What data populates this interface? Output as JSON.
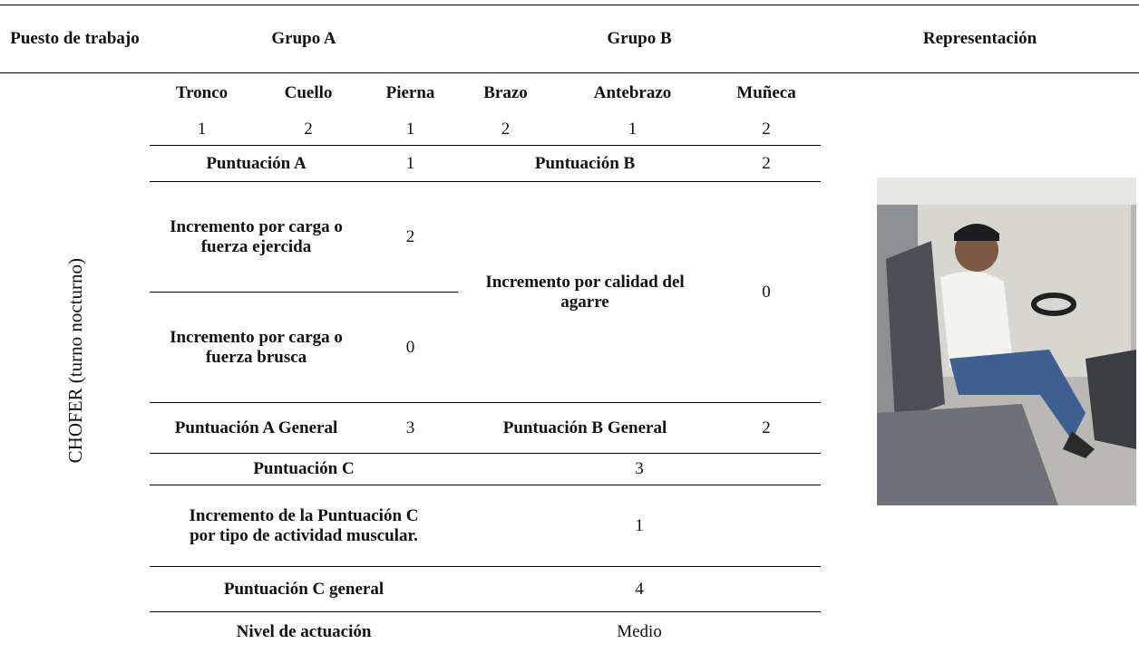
{
  "header": {
    "puesto_de_trabajo": "Puesto de trabajo",
    "grupo_a": "Grupo A",
    "grupo_b": "Grupo B",
    "representacion": "Representación"
  },
  "puesto": "CHOFER (turno nocturno)",
  "segments": [
    {
      "name": "Tronco",
      "score": 1
    },
    {
      "name": "Cuello",
      "score": 2
    },
    {
      "name": "Pierna",
      "score": 1
    },
    {
      "name": "Brazo",
      "score": 2
    },
    {
      "name": "Antebrazo",
      "score": 1
    },
    {
      "name": "Muñeca",
      "score": 2
    }
  ],
  "puntuacion_a": {
    "label": "Puntuación A",
    "value": 1
  },
  "puntuacion_b": {
    "label": "Puntuación B",
    "value": 2
  },
  "incremento_carga_ejercida": {
    "label": "Incremento por carga o fuerza ejercida",
    "value": 2
  },
  "incremento_carga_brusca": {
    "label": "Incremento por carga o fuerza brusca",
    "value": 0
  },
  "incremento_agarre": {
    "label": "Incremento por calidad del agarre",
    "value": 0
  },
  "puntuacion_a_general": {
    "label": "Puntuación A General",
    "value": 3
  },
  "puntuacion_b_general": {
    "label": "Puntuación B General",
    "value": 2
  },
  "puntuacion_c": {
    "label": "Puntuación C",
    "value": 3
  },
  "incremento_c": {
    "label": "Incremento de la Puntuación C por tipo de actividad muscular.",
    "value": 1
  },
  "puntuacion_c_general": {
    "label": "Puntuación C general",
    "value": 4
  },
  "nivel_actuacion": {
    "label": "Nivel de actuación",
    "value": "Medio"
  }
}
